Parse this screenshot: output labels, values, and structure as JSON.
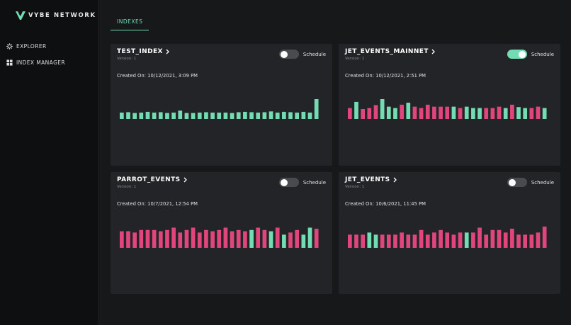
{
  "app": {
    "brand": "VYBE NETWORK",
    "logo_icon": "vybe-logo-icon"
  },
  "sidebar": {
    "items": [
      {
        "label": "EXPLORER",
        "icon": "gear-icon"
      },
      {
        "label": "INDEX MANAGER",
        "icon": "grid-icon"
      }
    ]
  },
  "tabs": [
    {
      "label": "INDEXES",
      "active": true
    }
  ],
  "colors": {
    "accent": "#73dcb2",
    "negative": "#e0457b",
    "card_bg": "#232427",
    "page_bg": "#17181a",
    "sidebar_bg": "#0e0f10"
  },
  "cards": [
    {
      "title": "TEST_INDEX",
      "version": "Version: 1",
      "schedule_label": "Schedule",
      "schedule_on": false,
      "created": "Created On: 10/12/2021, 3:09 PM",
      "chart_data": {
        "type": "bar",
        "values": [
          0.32,
          0.34,
          0.3,
          0.32,
          0.36,
          0.32,
          0.34,
          0.3,
          0.32,
          0.42,
          0.3,
          0.3,
          0.32,
          0.34,
          0.32,
          0.32,
          0.32,
          0.3,
          0.34,
          0.36,
          0.34,
          0.32,
          0.34,
          0.38,
          0.32,
          0.36,
          0.34,
          0.32,
          0.36,
          0.32,
          1.0
        ],
        "colors": [
          "g",
          "g",
          "g",
          "g",
          "g",
          "g",
          "g",
          "g",
          "g",
          "g",
          "g",
          "g",
          "g",
          "g",
          "g",
          "g",
          "g",
          "g",
          "g",
          "g",
          "g",
          "g",
          "g",
          "g",
          "g",
          "g",
          "g",
          "g",
          "g",
          "g",
          "g"
        ]
      }
    },
    {
      "title": "JET_EVENTS_MAINNET",
      "version": "Version: 1",
      "schedule_label": "Schedule",
      "schedule_on": true,
      "created": "Created On: 10/12/2021, 2:51 PM",
      "chart_data": {
        "type": "bar",
        "values": [
          0.55,
          0.86,
          0.5,
          0.55,
          0.7,
          1.0,
          0.62,
          0.55,
          0.72,
          0.82,
          0.62,
          0.55,
          0.72,
          0.62,
          0.62,
          0.62,
          0.62,
          0.55,
          0.62,
          0.55,
          0.55,
          0.55,
          0.55,
          0.62,
          0.55,
          0.72,
          0.6,
          0.55,
          0.55,
          0.62,
          0.55
        ],
        "colors": [
          "r",
          "g",
          "r",
          "r",
          "r",
          "g",
          "g",
          "g",
          "r",
          "g",
          "r",
          "r",
          "r",
          "r",
          "r",
          "r",
          "g",
          "r",
          "g",
          "g",
          "g",
          "r",
          "r",
          "r",
          "g",
          "r",
          "g",
          "g",
          "r",
          "r",
          "g"
        ]
      }
    },
    {
      "title": "PARROT_EVENTS",
      "version": "Version: 1",
      "schedule_label": "Schedule",
      "schedule_on": false,
      "created": "Created On: 10/7/2021, 12:54 PM",
      "chart_data": {
        "type": "bar",
        "values": [
          0.78,
          0.78,
          0.72,
          0.84,
          0.84,
          0.84,
          0.78,
          0.84,
          0.95,
          0.72,
          0.84,
          0.95,
          0.72,
          0.84,
          0.78,
          0.84,
          0.95,
          0.78,
          0.84,
          0.78,
          0.84,
          0.95,
          0.84,
          0.78,
          0.95,
          0.62,
          0.72,
          0.84,
          0.62,
          0.95,
          0.9
        ],
        "colors": [
          "r",
          "r",
          "r",
          "r",
          "r",
          "r",
          "r",
          "r",
          "r",
          "r",
          "r",
          "r",
          "r",
          "r",
          "r",
          "r",
          "r",
          "r",
          "r",
          "r",
          "g",
          "r",
          "r",
          "g",
          "r",
          "g",
          "r",
          "r",
          "g",
          "g",
          "r"
        ]
      }
    },
    {
      "title": "JET_EVENTS",
      "version": "Version: 1",
      "schedule_label": "Schedule",
      "schedule_on": false,
      "created": "Created On: 10/6/2021, 11:45 PM",
      "chart_data": {
        "type": "bar",
        "values": [
          0.62,
          0.62,
          0.62,
          0.72,
          0.62,
          0.62,
          0.62,
          0.62,
          0.72,
          0.62,
          0.62,
          0.84,
          0.62,
          0.72,
          0.84,
          0.72,
          0.62,
          0.72,
          0.72,
          0.72,
          0.95,
          0.62,
          0.84,
          0.84,
          0.72,
          0.9,
          0.62,
          0.62,
          0.62,
          0.72,
          1.0
        ],
        "colors": [
          "r",
          "r",
          "r",
          "g",
          "g",
          "r",
          "r",
          "r",
          "r",
          "r",
          "r",
          "r",
          "r",
          "r",
          "r",
          "r",
          "r",
          "r",
          "g",
          "r",
          "r",
          "r",
          "r",
          "r",
          "r",
          "r",
          "r",
          "r",
          "r",
          "r",
          "r"
        ]
      }
    }
  ]
}
